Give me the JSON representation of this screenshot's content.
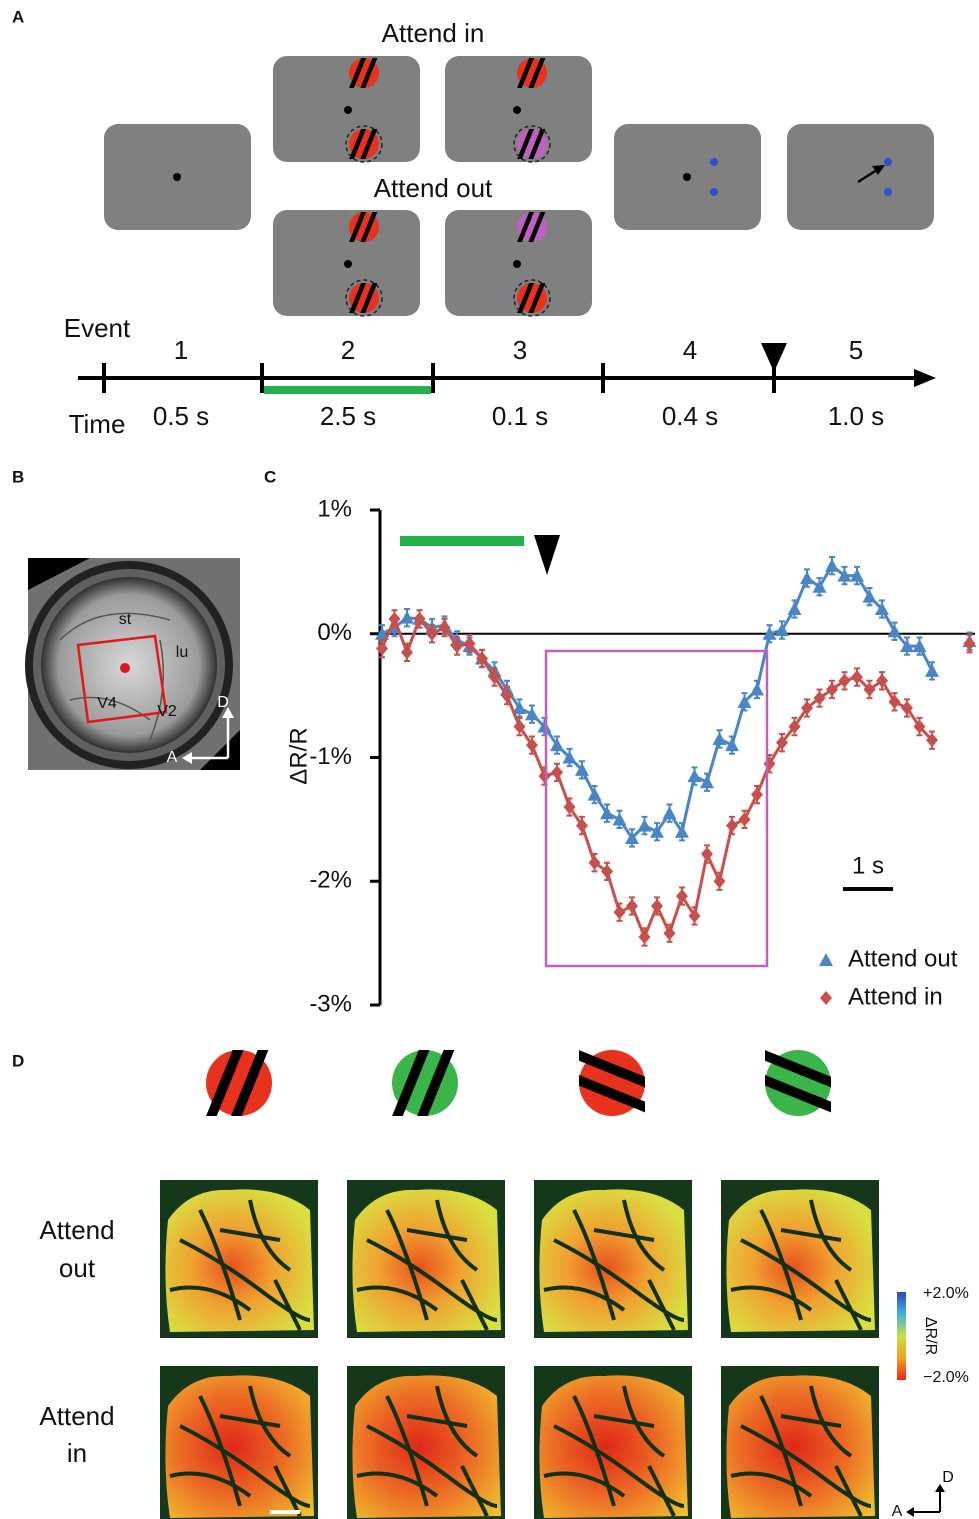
{
  "panel_a": {
    "label": "A",
    "attend_in": "Attend in",
    "attend_out": "Attend out",
    "event_label": "Event",
    "time_label": "Time",
    "events": [
      "1",
      "2",
      "3",
      "4",
      "5"
    ],
    "durations": [
      "0.5 s",
      "2.5 s",
      "0.1 s",
      "0.4 s",
      "1.0 s"
    ]
  },
  "panel_b": {
    "label": "B",
    "regions": [
      "st",
      "lu",
      "V4",
      "V2"
    ],
    "compass": [
      "D",
      "A"
    ]
  },
  "panel_c": {
    "label": "C",
    "scale_bar": "1 s"
  },
  "panel_d": {
    "label": "D",
    "rows": [
      [
        "Attend",
        "out"
      ],
      [
        "Attend",
        "in"
      ]
    ],
    "colorbar": {
      "max": "+2.0%",
      "label": "ΔR/R",
      "min": "−2.0%"
    },
    "compass": [
      "D",
      "A"
    ]
  },
  "chart_data": {
    "type": "line",
    "ylabel": "ΔR/R",
    "ylim": [
      -3,
      1
    ],
    "yticks": [
      {
        "value": 1,
        "label": "1%"
      },
      {
        "value": 0,
        "label": "0%"
      },
      {
        "value": -1,
        "label": "-1%"
      },
      {
        "value": -2,
        "label": "-2%"
      },
      {
        "value": -3,
        "label": "-3%"
      }
    ],
    "legend": "lower right",
    "series": [
      {
        "name": "Attend out",
        "color": "#4a86c6",
        "marker": "triangle",
        "error": 0.07,
        "values": [
          0.0,
          0.05,
          0.13,
          0.12,
          0.05,
          0.07,
          -0.05,
          -0.1,
          -0.2,
          -0.3,
          -0.45,
          -0.6,
          -0.65,
          -0.75,
          -0.9,
          -1.0,
          -1.1,
          -1.3,
          -1.45,
          -1.5,
          -1.65,
          -1.55,
          -1.6,
          -1.45,
          -1.6,
          -1.15,
          -1.2,
          -0.85,
          -0.9,
          -0.55,
          -0.45,
          0.0,
          0.03,
          0.2,
          0.45,
          0.38,
          0.55,
          0.47,
          0.47,
          0.3,
          0.2,
          0.02,
          -0.1,
          -0.1,
          -0.3,
          null,
          null,
          -0.06
        ]
      },
      {
        "name": "Attend in",
        "color": "#c8504c",
        "marker": "diamond",
        "error": 0.07,
        "values": [
          -0.12,
          0.12,
          -0.15,
          0.12,
          0.0,
          0.05,
          -0.1,
          -0.08,
          -0.2,
          -0.35,
          -0.5,
          -0.75,
          -0.9,
          -1.15,
          -1.12,
          -1.4,
          -1.55,
          -1.85,
          -1.92,
          -2.25,
          -2.2,
          -2.45,
          -2.2,
          -2.42,
          -2.12,
          -2.28,
          -1.78,
          -2.0,
          -1.55,
          -1.5,
          -1.3,
          -1.05,
          -0.88,
          -0.75,
          -0.6,
          -0.52,
          -0.45,
          -0.38,
          -0.35,
          -0.45,
          -0.38,
          -0.55,
          -0.6,
          -0.75,
          -0.86,
          null,
          null,
          -0.08
        ]
      }
    ]
  }
}
